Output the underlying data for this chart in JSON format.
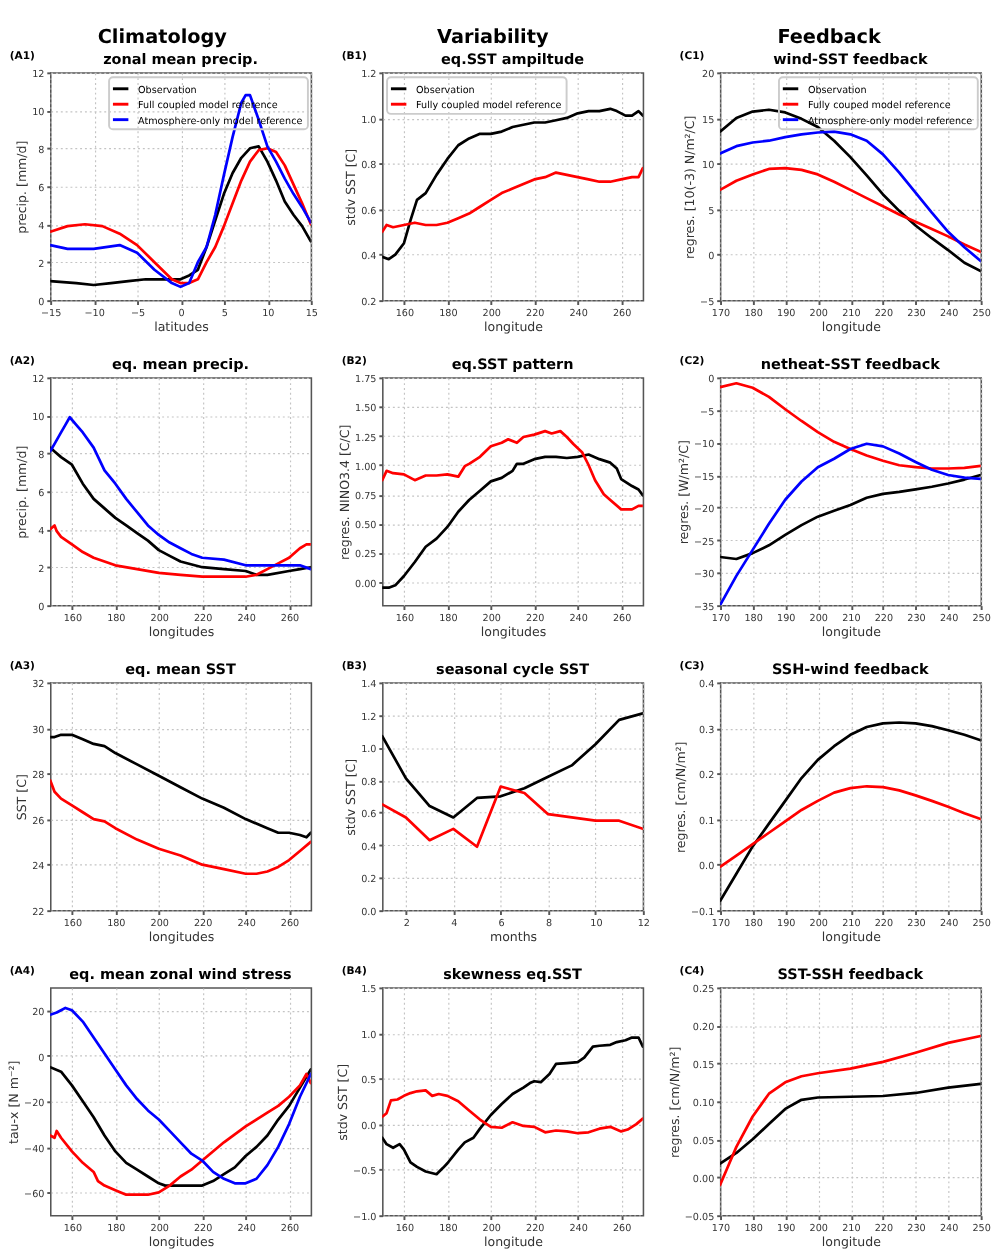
{
  "chart_data": [
    {
      "type": "line",
      "title": "zonal mean precip.",
      "xlabel": "latitudes",
      "ylabel": "precip. [mm/d]",
      "annotations": [
        "Climatology",
        "(A1)"
      ],
      "xlim": [
        -15,
        15
      ],
      "xticks": [
        -15,
        -10,
        -5,
        0,
        5,
        10,
        15
      ],
      "ylim": [
        0,
        12
      ],
      "yticks": [
        0,
        2,
        4,
        6,
        8,
        10,
        12
      ],
      "grid": true,
      "legend": "top right",
      "series": [
        {
          "name": "Observation",
          "color": "#000000",
          "x": [
            -15,
            -12,
            -10,
            -8,
            -6,
            -4,
            -2,
            0,
            1,
            2,
            3,
            4,
            5,
            6,
            7,
            8,
            9,
            10,
            11,
            12,
            13,
            14,
            15
          ],
          "values": [
            1.0,
            0.9,
            0.8,
            0.9,
            1.0,
            1.1,
            1.1,
            1.1,
            1.3,
            1.6,
            2.8,
            4.2,
            5.6,
            6.7,
            7.5,
            8.0,
            8.1,
            7.3,
            6.3,
            5.2,
            4.5,
            3.9,
            3.1
          ]
        },
        {
          "name": "Full coupled model reference",
          "color": "#ff0000",
          "x": [
            -15,
            -13,
            -11,
            -9,
            -7,
            -5,
            -3,
            -1,
            0,
            1,
            2,
            3,
            4,
            5,
            6,
            7,
            8,
            9,
            10,
            11,
            12,
            13,
            14,
            15
          ],
          "values": [
            3.6,
            3.9,
            4.0,
            3.9,
            3.5,
            2.9,
            2.0,
            1.1,
            0.9,
            0.9,
            1.1,
            2.0,
            2.8,
            3.9,
            5.1,
            6.3,
            7.3,
            7.9,
            8.0,
            7.8,
            7.1,
            6.1,
            5.1,
            4.0
          ]
        },
        {
          "name": "Atmosphere-only model reference",
          "color": "#0000ff",
          "x": [
            -15,
            -13,
            -10,
            -7,
            -5,
            -3,
            -1,
            0,
            1,
            2,
            3,
            4,
            5,
            6,
            7,
            7.5,
            8,
            9,
            10,
            11,
            12,
            13,
            14,
            15
          ],
          "values": [
            2.9,
            2.7,
            2.7,
            2.9,
            2.5,
            1.6,
            0.9,
            0.7,
            0.9,
            2.0,
            2.8,
            4.5,
            6.6,
            8.6,
            10.4,
            10.8,
            10.8,
            9.5,
            8.1,
            7.3,
            6.4,
            5.6,
            4.9,
            4.1
          ]
        }
      ]
    },
    {
      "type": "line",
      "title": "eq.SST ampiltude",
      "xlabel": "longitude",
      "ylabel": "stdv SST [C]",
      "annotations": [
        "Variability",
        "(B1)"
      ],
      "xlim": [
        150,
        270
      ],
      "xticks": [
        160,
        180,
        200,
        220,
        240,
        260
      ],
      "ylim": [
        0.2,
        1.2
      ],
      "yticks": [
        0.2,
        0.4,
        0.6,
        0.8,
        {
          "value": 1.0,
          "label": "1.0"
        },
        1.2
      ],
      "grid": true,
      "legend": "top left",
      "series": [
        {
          "name": "Observation",
          "color": "#000000",
          "x": [
            150,
            153,
            156,
            160,
            163,
            166,
            170,
            175,
            180,
            185,
            190,
            195,
            200,
            205,
            210,
            215,
            220,
            225,
            230,
            235,
            240,
            245,
            250,
            255,
            258,
            262,
            265,
            268,
            270
          ],
          "values": [
            0.39,
            0.38,
            0.4,
            0.45,
            0.55,
            0.64,
            0.67,
            0.75,
            0.82,
            0.88,
            0.91,
            0.93,
            0.93,
            0.94,
            0.96,
            0.97,
            0.98,
            0.98,
            0.99,
            1.0,
            1.02,
            1.03,
            1.03,
            1.04,
            1.03,
            1.01,
            1.01,
            1.03,
            1.01
          ]
        },
        {
          "name": "Fully coupled model reference",
          "color": "#ff0000",
          "x": [
            150,
            152,
            155,
            160,
            165,
            170,
            175,
            180,
            185,
            190,
            195,
            200,
            205,
            210,
            215,
            220,
            225,
            230,
            235,
            240,
            245,
            250,
            255,
            260,
            265,
            268,
            270
          ],
          "values": [
            0.5,
            0.53,
            0.52,
            0.53,
            0.54,
            0.53,
            0.53,
            0.54,
            0.56,
            0.58,
            0.61,
            0.64,
            0.67,
            0.69,
            0.71,
            0.73,
            0.74,
            0.76,
            0.75,
            0.74,
            0.73,
            0.72,
            0.72,
            0.73,
            0.74,
            0.74,
            0.78
          ]
        }
      ]
    },
    {
      "type": "line",
      "title": "wind-SST feedback",
      "xlabel": "longitude",
      "ylabel": "regres. [10(-3) N/m²/C]",
      "annotations": [
        "Feedback",
        "(C1)"
      ],
      "xlim": [
        170,
        250
      ],
      "xticks": [
        170,
        180,
        190,
        200,
        210,
        220,
        230,
        240,
        250
      ],
      "ylim": [
        -5,
        20
      ],
      "yticks": [
        -5,
        0,
        5,
        10,
        15,
        20
      ],
      "grid": true,
      "legend": "top right",
      "series": [
        {
          "name": "Observation",
          "color": "#000000",
          "x": [
            170,
            175,
            180,
            185,
            190,
            195,
            200,
            205,
            210,
            215,
            220,
            225,
            230,
            235,
            240,
            245,
            250
          ],
          "values": [
            13.5,
            15.0,
            15.7,
            15.9,
            15.6,
            14.9,
            14.0,
            12.5,
            10.7,
            8.7,
            6.6,
            4.8,
            3.2,
            1.8,
            0.5,
            -0.9,
            -1.8
          ]
        },
        {
          "name": "Fully couped model reference",
          "color": "#ff0000",
          "x": [
            170,
            175,
            180,
            185,
            190,
            195,
            200,
            205,
            210,
            215,
            220,
            225,
            230,
            235,
            240,
            245,
            250
          ],
          "values": [
            7.1,
            8.1,
            8.8,
            9.4,
            9.5,
            9.3,
            8.8,
            8.0,
            7.1,
            6.2,
            5.3,
            4.4,
            3.6,
            2.8,
            2.0,
            1.1,
            0.3
          ]
        },
        {
          "name": "Atmosphere-only model reference",
          "color": "#0000ff",
          "x": [
            170,
            175,
            180,
            185,
            190,
            195,
            200,
            205,
            210,
            215,
            220,
            225,
            230,
            235,
            240,
            245,
            250
          ],
          "values": [
            11.1,
            11.9,
            12.3,
            12.5,
            12.9,
            13.2,
            13.4,
            13.5,
            13.2,
            12.5,
            11.0,
            9.0,
            6.8,
            4.6,
            2.5,
            0.8,
            -0.7
          ]
        }
      ]
    },
    {
      "type": "line",
      "title": "eq. mean precip.",
      "xlabel": "longitudes",
      "ylabel": "precip. [mm/d]",
      "annotations": [
        "(A2)"
      ],
      "xlim": [
        150,
        270
      ],
      "xticks": [
        160,
        180,
        200,
        220,
        240,
        260
      ],
      "ylim": [
        0,
        12
      ],
      "yticks": [
        0,
        2,
        4,
        6,
        8,
        10,
        12
      ],
      "grid": true,
      "series": [
        {
          "color": "#000000",
          "x": [
            150,
            152,
            155,
            160,
            165,
            170,
            175,
            180,
            185,
            190,
            195,
            200,
            205,
            210,
            220,
            230,
            240,
            245,
            250,
            260,
            265,
            270
          ],
          "values": [
            8.3,
            8.1,
            7.8,
            7.4,
            6.4,
            5.6,
            5.1,
            4.6,
            4.2,
            3.8,
            3.4,
            2.9,
            2.6,
            2.3,
            2.0,
            1.9,
            1.8,
            1.6,
            1.6,
            1.8,
            1.9,
            2.0
          ]
        },
        {
          "color": "#ff0000",
          "x": [
            150,
            152,
            153,
            155,
            160,
            165,
            170,
            175,
            180,
            190,
            200,
            210,
            220,
            230,
            240,
            245,
            250,
            255,
            260,
            265,
            268,
            270
          ],
          "values": [
            4.0,
            4.2,
            3.9,
            3.6,
            3.2,
            2.8,
            2.5,
            2.3,
            2.1,
            1.9,
            1.7,
            1.6,
            1.5,
            1.5,
            1.5,
            1.6,
            1.9,
            2.2,
            2.5,
            3.0,
            3.2,
            3.2
          ]
        },
        {
          "color": "#0000ff",
          "x": [
            150,
            152,
            155,
            157,
            159,
            162,
            165,
            170,
            175,
            180,
            185,
            190,
            195,
            200,
            205,
            210,
            215,
            220,
            230,
            240,
            250,
            260,
            265,
            270
          ],
          "values": [
            8.1,
            8.5,
            9.1,
            9.5,
            9.9,
            9.5,
            9.1,
            8.3,
            7.1,
            6.4,
            5.6,
            4.9,
            4.2,
            3.7,
            3.3,
            3.0,
            2.7,
            2.5,
            2.4,
            2.1,
            2.1,
            2.1,
            2.1,
            1.9
          ]
        }
      ]
    },
    {
      "type": "line",
      "title": "eq.SST pattern",
      "xlabel": "longitudes",
      "ylabel": "regres. NINO3.4 [C/C]",
      "annotations": [
        "(B2)"
      ],
      "xlim": [
        150,
        270
      ],
      "xticks": [
        160,
        180,
        200,
        220,
        240,
        260
      ],
      "ylim": [
        -0.2,
        1.75
      ],
      "yticks": [
        {
          "value": 0,
          "label": "0.00"
        },
        0.25,
        {
          "value": 0.5,
          "label": "0.50"
        },
        0.75,
        {
          "value": 1,
          "label": "1.00"
        },
        1.25,
        {
          "value": 1.5,
          "label": "1.50"
        },
        1.75
      ],
      "grid": true,
      "series": [
        {
          "color": "#000000",
          "x": [
            150,
            153,
            156,
            160,
            165,
            170,
            175,
            180,
            185,
            190,
            195,
            200,
            205,
            210,
            212,
            215,
            220,
            225,
            230,
            235,
            240,
            245,
            250,
            255,
            258,
            260,
            265,
            268,
            270
          ],
          "values": [
            -0.05,
            -0.05,
            -0.03,
            0.05,
            0.17,
            0.3,
            0.37,
            0.47,
            0.6,
            0.7,
            0.78,
            0.86,
            0.89,
            0.95,
            1.01,
            1.01,
            1.05,
            1.07,
            1.07,
            1.06,
            1.07,
            1.09,
            1.05,
            1.02,
            0.97,
            0.88,
            0.82,
            0.79,
            0.74
          ]
        },
        {
          "color": "#ff0000",
          "x": [
            150,
            152,
            155,
            160,
            165,
            170,
            175,
            180,
            185,
            188,
            190,
            195,
            200,
            205,
            208,
            212,
            215,
            220,
            225,
            228,
            232,
            235,
            238,
            242,
            245,
            248,
            252,
            255,
            260,
            265,
            268,
            270
          ],
          "values": [
            0.87,
            0.95,
            0.93,
            0.92,
            0.87,
            0.91,
            0.91,
            0.92,
            0.9,
            0.99,
            1.01,
            1.07,
            1.16,
            1.19,
            1.22,
            1.19,
            1.24,
            1.26,
            1.29,
            1.27,
            1.29,
            1.24,
            1.18,
            1.11,
            1.0,
            0.87,
            0.75,
            0.7,
            0.62,
            0.62,
            0.65,
            0.65
          ]
        }
      ]
    },
    {
      "type": "line",
      "title": "netheat-SST feedback",
      "xlabel": "longitude",
      "ylabel": "regres. [W/m²/C]",
      "annotations": [
        "(C2)"
      ],
      "xlim": [
        170,
        250
      ],
      "xticks": [
        170,
        180,
        190,
        200,
        210,
        220,
        230,
        240,
        250
      ],
      "ylim": [
        -35,
        0
      ],
      "yticks": [
        -35,
        -30,
        -25,
        -20,
        -15,
        -10,
        -5,
        0
      ],
      "grid": true,
      "series": [
        {
          "color": "#000000",
          "x": [
            170,
            175,
            180,
            185,
            190,
            195,
            200,
            205,
            210,
            215,
            220,
            225,
            230,
            235,
            240,
            245,
            250
          ],
          "values": [
            -27.6,
            -27.9,
            -27.0,
            -25.8,
            -24.2,
            -22.7,
            -21.4,
            -20.5,
            -19.6,
            -18.5,
            -17.9,
            -17.6,
            -17.2,
            -16.8,
            -16.3,
            -15.7,
            -15.0
          ]
        },
        {
          "color": "#ff0000",
          "x": [
            170,
            175,
            180,
            185,
            190,
            195,
            200,
            205,
            210,
            215,
            220,
            225,
            230,
            235,
            240,
            245,
            250
          ],
          "values": [
            -1.5,
            -0.9,
            -1.6,
            -3.0,
            -4.9,
            -6.7,
            -8.4,
            -9.9,
            -11.0,
            -12.0,
            -12.8,
            -13.5,
            -13.8,
            -14.0,
            -14.0,
            -13.9,
            -13.6
          ]
        },
        {
          "color": "#0000ff",
          "x": [
            170,
            175,
            180,
            185,
            190,
            195,
            200,
            205,
            210,
            215,
            220,
            225,
            230,
            235,
            240,
            245,
            250
          ],
          "values": [
            -35.0,
            -30.5,
            -26.5,
            -22.5,
            -18.8,
            -16.0,
            -13.8,
            -12.5,
            -11.0,
            -10.2,
            -10.6,
            -11.7,
            -13.0,
            -14.2,
            -15.0,
            -15.4,
            -15.6
          ]
        }
      ]
    },
    {
      "type": "line",
      "title": "eq. mean SST",
      "xlabel": "longitudes",
      "ylabel": "SST [C]",
      "annotations": [
        "(A3)"
      ],
      "xlim": [
        150,
        270
      ],
      "xticks": [
        160,
        180,
        200,
        220,
        240,
        260
      ],
      "ylim": [
        22,
        32
      ],
      "yticks": [
        22,
        24,
        26,
        28,
        30,
        32
      ],
      "grid": true,
      "series": [
        {
          "color": "#000000",
          "x": [
            150,
            152,
            155,
            160,
            165,
            170,
            175,
            180,
            190,
            200,
            210,
            220,
            230,
            240,
            250,
            255,
            260,
            265,
            268,
            270
          ],
          "values": [
            29.6,
            29.6,
            29.7,
            29.7,
            29.5,
            29.3,
            29.2,
            28.9,
            28.4,
            27.9,
            27.4,
            26.9,
            26.5,
            26.0,
            25.6,
            25.4,
            25.4,
            25.3,
            25.2,
            25.4
          ]
        },
        {
          "color": "#ff0000",
          "x": [
            150,
            152,
            155,
            160,
            165,
            170,
            175,
            180,
            190,
            200,
            210,
            220,
            230,
            240,
            245,
            250,
            255,
            260,
            265,
            270
          ],
          "values": [
            27.7,
            27.2,
            26.9,
            26.6,
            26.3,
            26.0,
            25.9,
            25.6,
            25.1,
            24.7,
            24.4,
            24.0,
            23.8,
            23.6,
            23.6,
            23.7,
            23.9,
            24.2,
            24.6,
            25.0
          ]
        }
      ]
    },
    {
      "type": "line",
      "title": "seasonal cycle SST",
      "xlabel": "months",
      "ylabel": "stdv SST [C]",
      "annotations": [
        "(B3)"
      ],
      "xlim": [
        1,
        12
      ],
      "xticks": [
        2,
        4,
        6,
        8,
        10,
        12
      ],
      "ylim": [
        0,
        1.4
      ],
      "yticks": [
        {
          "value": 0,
          "label": "0.0"
        },
        0.2,
        0.4,
        0.6,
        0.8,
        {
          "value": 1,
          "label": "1.0"
        },
        1.2,
        1.4
      ],
      "grid": true,
      "series": [
        {
          "color": "#000000",
          "x": [
            1,
            2,
            3,
            4,
            5,
            6,
            7,
            8,
            9,
            10,
            11,
            12
          ],
          "values": [
            1.07,
            0.81,
            0.64,
            0.57,
            0.69,
            0.7,
            0.75,
            0.82,
            0.89,
            1.02,
            1.17,
            1.21
          ]
        },
        {
          "color": "#ff0000",
          "x": [
            1,
            2,
            3,
            4,
            5,
            6,
            7,
            8,
            9,
            10,
            11,
            12
          ],
          "values": [
            0.65,
            0.57,
            0.43,
            0.5,
            0.39,
            0.76,
            0.72,
            0.59,
            0.57,
            0.55,
            0.55,
            0.5
          ]
        }
      ]
    },
    {
      "type": "line",
      "title": "SSH-wind feedback",
      "xlabel": "longitude",
      "ylabel": "regres. [cm/N/m²]",
      "annotations": [
        "(C3)"
      ],
      "xlim": [
        170,
        250
      ],
      "xticks": [
        170,
        180,
        190,
        200,
        210,
        220,
        230,
        240,
        250
      ],
      "ylim": [
        -0.1,
        0.4
      ],
      "yticks": [
        -0.1,
        {
          "value": 0,
          "label": "0.0"
        },
        0.1,
        0.2,
        0.3,
        0.4
      ],
      "grid": true,
      "series": [
        {
          "color": "#000000",
          "x": [
            170,
            175,
            180,
            185,
            190,
            195,
            200,
            205,
            210,
            215,
            220,
            225,
            230,
            235,
            240,
            245,
            250
          ],
          "values": [
            -0.08,
            -0.02,
            0.04,
            0.09,
            0.14,
            0.19,
            0.23,
            0.26,
            0.285,
            0.302,
            0.31,
            0.312,
            0.31,
            0.304,
            0.295,
            0.285,
            0.273
          ]
        },
        {
          "color": "#ff0000",
          "x": [
            170,
            175,
            180,
            185,
            190,
            195,
            200,
            205,
            210,
            215,
            220,
            225,
            230,
            235,
            240,
            245,
            250
          ],
          "values": [
            -0.005,
            0.02,
            0.045,
            0.07,
            0.095,
            0.12,
            0.14,
            0.158,
            0.168,
            0.172,
            0.17,
            0.163,
            0.152,
            0.14,
            0.127,
            0.113,
            0.1
          ]
        }
      ]
    },
    {
      "type": "line",
      "title": "eq. mean zonal wind stress",
      "xlabel": "longitudes",
      "ylabel": "tau-x [N m⁻²]",
      "annotations": [
        "(A4)"
      ],
      "xlim": [
        150,
        270
      ],
      "xticks": [
        160,
        180,
        200,
        220,
        240,
        260
      ],
      "ylim": [
        -70,
        30
      ],
      "yticks": [
        -60,
        -40,
        -20,
        0,
        20
      ],
      "grid": true,
      "series": [
        {
          "color": "#000000",
          "x": [
            150,
            155,
            160,
            165,
            170,
            175,
            180,
            185,
            190,
            195,
            200,
            203,
            210,
            220,
            225,
            230,
            235,
            240,
            245,
            250,
            255,
            260,
            265,
            270
          ],
          "values": [
            -5,
            -7,
            -13,
            -20,
            -27,
            -35,
            -42,
            -47,
            -50,
            -53,
            -56,
            -57,
            -57,
            -57,
            -55,
            -52,
            -49,
            -44,
            -40,
            -35,
            -28,
            -22,
            -14,
            -6
          ]
        },
        {
          "color": "#ff0000",
          "x": [
            150,
            152,
            153,
            155,
            160,
            165,
            170,
            172,
            175,
            180,
            185,
            190,
            195,
            200,
            205,
            210,
            215,
            220,
            230,
            240,
            250,
            255,
            260,
            265,
            268,
            270
          ],
          "values": [
            -35,
            -36,
            -33,
            -36,
            -42,
            -47,
            -51,
            -55,
            -57,
            -59,
            -61,
            -61,
            -61,
            -60,
            -57,
            -53,
            -50,
            -46,
            -38,
            -31,
            -25,
            -22,
            -18,
            -13,
            -8,
            -12
          ]
        },
        {
          "color": "#0000ff",
          "x": [
            150,
            153,
            155,
            157,
            160,
            165,
            170,
            175,
            180,
            185,
            190,
            195,
            200,
            205,
            210,
            215,
            220,
            225,
            230,
            235,
            240,
            245,
            250,
            255,
            260,
            265,
            270
          ],
          "values": [
            18,
            19,
            20,
            21,
            20,
            15,
            8,
            1,
            -6,
            -13,
            -19,
            -24,
            -28,
            -33,
            -38,
            -43,
            -46,
            -51,
            -54,
            -56,
            -56,
            -54,
            -48,
            -40,
            -30,
            -18,
            -8
          ]
        }
      ]
    },
    {
      "type": "line",
      "title": "skewness eq.SST",
      "xlabel": "longitude",
      "ylabel": "stdv SST [C]",
      "annotations": [
        "(B4)"
      ],
      "xlim": [
        150,
        270
      ],
      "xticks": [
        160,
        180,
        200,
        220,
        240,
        260
      ],
      "ylim": [
        -1,
        1.5
      ],
      "yticks": [
        {
          "value": -1,
          "label": "−1.0"
        },
        -0.5,
        {
          "value": 0,
          "label": "0.0"
        },
        0.5,
        {
          "value": 1,
          "label": "1.0"
        },
        1.5
      ],
      "grid": true,
      "series": [
        {
          "color": "#000000",
          "x": [
            150,
            152,
            155,
            158,
            160,
            163,
            166,
            170,
            175,
            178,
            180,
            185,
            188,
            192,
            195,
            200,
            205,
            210,
            215,
            218,
            220,
            223,
            227,
            230,
            235,
            240,
            243,
            247,
            250,
            255,
            258,
            262,
            265,
            268,
            270
          ],
          "values": [
            -0.15,
            -0.22,
            -0.26,
            -0.22,
            -0.28,
            -0.42,
            -0.47,
            -0.52,
            -0.55,
            -0.48,
            -0.43,
            -0.28,
            -0.2,
            -0.15,
            -0.05,
            0.1,
            0.22,
            0.33,
            0.4,
            0.45,
            0.47,
            0.46,
            0.55,
            0.66,
            0.67,
            0.68,
            0.73,
            0.85,
            0.86,
            0.87,
            0.9,
            0.92,
            0.95,
            0.95,
            0.85
          ]
        },
        {
          "color": "#ff0000",
          "x": [
            150,
            152,
            154,
            157,
            160,
            163,
            166,
            170,
            173,
            176,
            180,
            185,
            190,
            195,
            200,
            205,
            210,
            215,
            220,
            225,
            230,
            235,
            240,
            245,
            250,
            255,
            260,
            263,
            267,
            270
          ],
          "values": [
            0.08,
            0.12,
            0.26,
            0.27,
            0.31,
            0.34,
            0.36,
            0.37,
            0.31,
            0.33,
            0.31,
            0.25,
            0.15,
            0.05,
            -0.03,
            -0.04,
            0.02,
            -0.02,
            -0.03,
            -0.09,
            -0.07,
            -0.08,
            -0.1,
            -0.09,
            -0.05,
            -0.03,
            -0.08,
            -0.06,
            0.0,
            0.06
          ]
        }
      ]
    },
    {
      "type": "line",
      "title": "SST-SSH feedback",
      "xlabel": "longitude",
      "ylabel": "regres. [cm/N/m²]",
      "annotations": [
        "(C4)"
      ],
      "xlim": [
        170,
        250
      ],
      "xticks": [
        170,
        180,
        190,
        200,
        210,
        220,
        230,
        240,
        250
      ],
      "ylim": [
        -0.05,
        0.25
      ],
      "yticks": [
        -0.05,
        {
          "value": 0,
          "label": "0.00"
        },
        0.05,
        {
          "value": 0.1,
          "label": "0.10"
        },
        0.15,
        {
          "value": 0.2,
          "label": "0.20"
        },
        0.25
      ],
      "grid": true,
      "series": [
        {
          "color": "#000000",
          "x": [
            170,
            175,
            180,
            185,
            190,
            195,
            200,
            210,
            220,
            230,
            240,
            250
          ],
          "values": [
            0.018,
            0.032,
            0.05,
            0.07,
            0.09,
            0.102,
            0.105,
            0.106,
            0.107,
            0.111,
            0.118,
            0.123
          ]
        },
        {
          "color": "#ff0000",
          "x": [
            170,
            172,
            175,
            180,
            185,
            190,
            195,
            200,
            210,
            220,
            230,
            240,
            250
          ],
          "values": [
            -0.01,
            0.01,
            0.04,
            0.08,
            0.11,
            0.125,
            0.133,
            0.137,
            0.143,
            0.152,
            0.164,
            0.177,
            0.186
          ]
        }
      ]
    }
  ]
}
